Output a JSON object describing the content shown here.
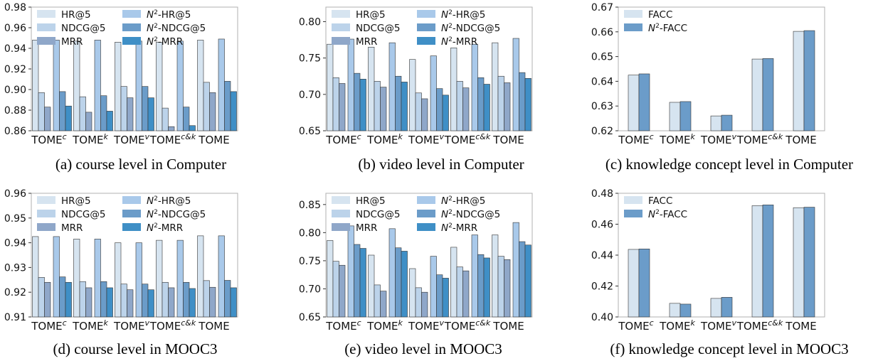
{
  "colors": {
    "HR@5": "#d6e4f0",
    "NDCG@5": "#bcd3ea",
    "MRR": "#8fa7c9",
    "N2-HR@5": "#a9c9ea",
    "N2-NDCG@5": "#6b9cc9",
    "N2-MRR": "#3f8fc6",
    "FACC": "#d6e4f0",
    "N2-FACC": "#6b9cc9",
    "axis": "#b0b0b0",
    "bar_edge": "#333333"
  },
  "legend_labels": {
    "HR@5": "HR@5",
    "NDCG@5": "NDCG@5",
    "MRR": "MRR",
    "N2-HR@5": "-HR@5",
    "N2-NDCG@5": "-NDCG@5",
    "N2-MRR": "-MRR",
    "FACC": "FACC",
    "N2-FACC": "-FACC"
  },
  "chart_data": [
    {
      "type": "bar",
      "caption": "(a)  course level in Computer",
      "categories": [
        "TOME",
        "TOME",
        "TOME",
        "TOME",
        "TOME"
      ],
      "category_superscripts": [
        "c",
        "k",
        "v",
        "c&k",
        ""
      ],
      "ylim": [
        0.86,
        0.98
      ],
      "yticks": [
        "0.86",
        "0.88",
        "0.90",
        "0.92",
        "0.94",
        "0.96",
        "0.98"
      ],
      "legend_placement": "top-left",
      "series": [
        {
          "key": "HR@5",
          "values": [
            0.948,
            0.947,
            0.946,
            0.946,
            0.948
          ]
        },
        {
          "key": "NDCG@5",
          "values": [
            0.897,
            0.893,
            0.903,
            0.882,
            0.907
          ]
        },
        {
          "key": "MRR",
          "values": [
            0.883,
            0.878,
            0.892,
            0.864,
            0.897
          ]
        },
        {
          "key": "N2-HR@5",
          "values": [
            0.948,
            0.948,
            0.947,
            0.947,
            0.949
          ]
        },
        {
          "key": "N2-NDCG@5",
          "values": [
            0.898,
            0.894,
            0.903,
            0.883,
            0.908
          ]
        },
        {
          "key": "N2-MRR",
          "values": [
            0.884,
            0.879,
            0.892,
            0.865,
            0.898
          ]
        }
      ]
    },
    {
      "type": "bar",
      "caption": "(b)  video level in Computer",
      "categories": [
        "TOME",
        "TOME",
        "TOME",
        "TOME",
        "TOME"
      ],
      "category_superscripts": [
        "c",
        "k",
        "v",
        "c&k",
        ""
      ],
      "ylim": [
        0.65,
        0.82
      ],
      "yticks": [
        "0.65",
        "0.70",
        "0.75",
        "0.80"
      ],
      "legend_placement": "top-left",
      "series": [
        {
          "key": "HR@5",
          "values": [
            0.769,
            0.765,
            0.748,
            0.764,
            0.771
          ]
        },
        {
          "key": "NDCG@5",
          "values": [
            0.723,
            0.718,
            0.702,
            0.718,
            0.725
          ]
        },
        {
          "key": "MRR",
          "values": [
            0.715,
            0.71,
            0.694,
            0.709,
            0.716
          ]
        },
        {
          "key": "N2-HR@5",
          "values": [
            0.776,
            0.771,
            0.753,
            0.769,
            0.777
          ]
        },
        {
          "key": "N2-NDCG@5",
          "values": [
            0.729,
            0.725,
            0.708,
            0.723,
            0.73
          ]
        },
        {
          "key": "N2-MRR",
          "values": [
            0.721,
            0.717,
            0.699,
            0.714,
            0.722
          ]
        }
      ]
    },
    {
      "type": "bar",
      "caption": "(c)  knowledge concept level in Computer",
      "categories": [
        "TOME",
        "TOME",
        "TOME",
        "TOME",
        "TOME"
      ],
      "category_superscripts": [
        "c",
        "k",
        "v",
        "c&k",
        ""
      ],
      "ylim": [
        0.62,
        0.67
      ],
      "yticks": [
        "0.62",
        "0.63",
        "0.64",
        "0.65",
        "0.66",
        "0.67"
      ],
      "legend_placement": "top-left",
      "series": [
        {
          "key": "FACC",
          "values": [
            0.6425,
            0.6315,
            0.626,
            0.649,
            0.6602
          ]
        },
        {
          "key": "N2-FACC",
          "values": [
            0.643,
            0.6318,
            0.6263,
            0.6492,
            0.6605
          ]
        }
      ]
    },
    {
      "type": "bar",
      "caption": "(d)  course level in MOOC3",
      "categories": [
        "TOME",
        "TOME",
        "TOME",
        "TOME",
        "TOME"
      ],
      "category_superscripts": [
        "c",
        "k",
        "v",
        "c&k",
        ""
      ],
      "ylim": [
        0.91,
        0.96
      ],
      "yticks": [
        "0.91",
        "0.92",
        "0.93",
        "0.94",
        "0.95",
        "0.96"
      ],
      "legend_placement": "top-left",
      "series": [
        {
          "key": "HR@5",
          "values": [
            0.9425,
            0.9415,
            0.94,
            0.941,
            0.9428
          ]
        },
        {
          "key": "NDCG@5",
          "values": [
            0.926,
            0.9243,
            0.9233,
            0.924,
            0.9247
          ]
        },
        {
          "key": "MRR",
          "values": [
            0.924,
            0.9218,
            0.921,
            0.9218,
            0.922
          ]
        },
        {
          "key": "N2-HR@5",
          "values": [
            0.9425,
            0.9415,
            0.94,
            0.941,
            0.9428
          ]
        },
        {
          "key": "N2-NDCG@5",
          "values": [
            0.9262,
            0.9243,
            0.9233,
            0.924,
            0.9248
          ]
        },
        {
          "key": "N2-MRR",
          "values": [
            0.924,
            0.9218,
            0.921,
            0.9215,
            0.9218
          ]
        }
      ]
    },
    {
      "type": "bar",
      "caption": "(e)  video level in MOOC3",
      "categories": [
        "TOME",
        "TOME",
        "TOME",
        "TOME",
        "TOME"
      ],
      "category_superscripts": [
        "c",
        "k",
        "v",
        "c&k",
        ""
      ],
      "ylim": [
        0.65,
        0.87
      ],
      "yticks": [
        "0.65",
        "0.70",
        "0.75",
        "0.80",
        "0.85"
      ],
      "legend_placement": "top-left",
      "series": [
        {
          "key": "HR@5",
          "values": [
            0.786,
            0.76,
            0.736,
            0.774,
            0.796
          ]
        },
        {
          "key": "NDCG@5",
          "values": [
            0.749,
            0.707,
            0.702,
            0.739,
            0.758
          ]
        },
        {
          "key": "MRR",
          "values": [
            0.742,
            0.696,
            0.694,
            0.732,
            0.752
          ]
        },
        {
          "key": "N2-HR@5",
          "values": [
            0.812,
            0.807,
            0.758,
            0.796,
            0.818
          ]
        },
        {
          "key": "N2-NDCG@5",
          "values": [
            0.779,
            0.773,
            0.725,
            0.761,
            0.784
          ]
        },
        {
          "key": "N2-MRR",
          "values": [
            0.772,
            0.767,
            0.719,
            0.755,
            0.778
          ]
        }
      ]
    },
    {
      "type": "bar",
      "caption": "(f)  knowledge concept level in MOOC3",
      "categories": [
        "TOME",
        "TOME",
        "TOME",
        "TOME",
        "TOME"
      ],
      "category_superscripts": [
        "c",
        "k",
        "v",
        "c&k",
        ""
      ],
      "ylim": [
        0.4,
        0.48
      ],
      "yticks": [
        "0.40",
        "0.42",
        "0.44",
        "0.46",
        "0.48"
      ],
      "legend_placement": "top-left",
      "series": [
        {
          "key": "FACC",
          "values": [
            0.4437,
            0.4088,
            0.412,
            0.472,
            0.4707
          ]
        },
        {
          "key": "N2-FACC",
          "values": [
            0.444,
            0.4083,
            0.4127,
            0.4725,
            0.471
          ]
        }
      ]
    }
  ]
}
